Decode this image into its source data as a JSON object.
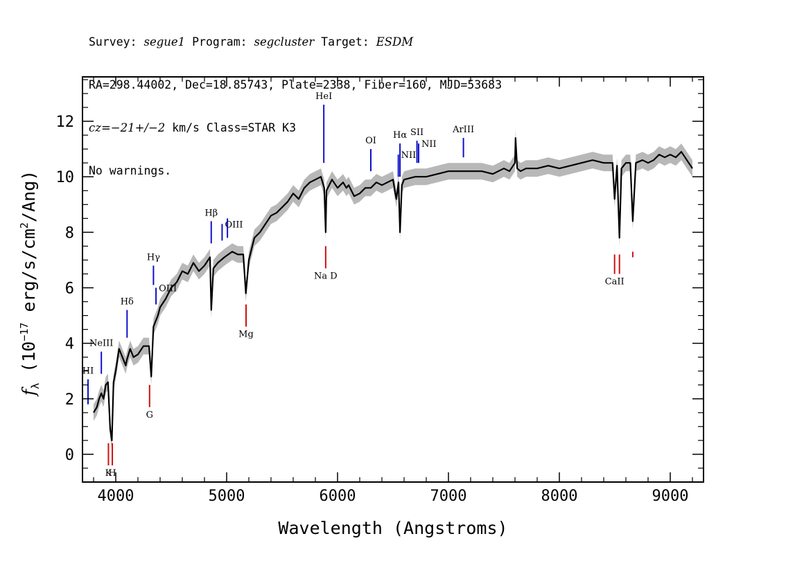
{
  "header": {
    "line1": {
      "survey_label": "Survey: ",
      "survey": "segue1",
      "program_label": " Program: ",
      "program": "segcluster",
      "target_label": " Target: ",
      "target": "ESDM"
    },
    "line2": "RA=298.44002, Dec=18.85743, Plate=2338, Fiber=160, MJD=53683",
    "line3": {
      "cz_label": "cz",
      "cz_value": "=−21+/−2",
      "rest": " km/s Class=STAR K3"
    },
    "line4": "No warnings."
  },
  "chart_data": {
    "type": "line",
    "xlabel": "Wavelength (Angstroms)",
    "ylabel_main": "f",
    "ylabel_sub": "λ",
    "ylabel_pre": " (10",
    "ylabel_exp1": "−17",
    "ylabel_mid": " erg/s/cm",
    "ylabel_exp2": "2",
    "ylabel_post": "/Ang)",
    "xlim": [
      3700,
      9300
    ],
    "ylim": [
      -1,
      13.6
    ],
    "x_ticks": [
      4000,
      5000,
      6000,
      7000,
      8000,
      9000
    ],
    "y_ticks": [
      0,
      2,
      4,
      6,
      8,
      10,
      12
    ],
    "x_tick_labels": [
      "4000",
      "5000",
      "6000",
      "7000",
      "8000",
      "9000"
    ],
    "y_tick_labels": [
      "0",
      "2",
      "4",
      "6",
      "8",
      "10",
      "12"
    ],
    "spectrum": {
      "x": [
        3800,
        3830,
        3850,
        3870,
        3890,
        3910,
        3930,
        3950,
        3965,
        3980,
        4000,
        4030,
        4060,
        4090,
        4100,
        4130,
        4160,
        4200,
        4250,
        4300,
        4320,
        4340,
        4380,
        4400,
        4450,
        4500,
        4550,
        4600,
        4650,
        4700,
        4750,
        4800,
        4850,
        4861,
        4880,
        4920,
        4980,
        5050,
        5100,
        5150,
        5173,
        5200,
        5250,
        5300,
        5350,
        5400,
        5450,
        5500,
        5550,
        5600,
        5650,
        5700,
        5750,
        5800,
        5850,
        5880,
        5893,
        5900,
        5950,
        6000,
        6050,
        6080,
        6100,
        6150,
        6200,
        6250,
        6300,
        6350,
        6400,
        6450,
        6500,
        6530,
        6550,
        6563,
        6580,
        6600,
        6700,
        6800,
        6900,
        7000,
        7100,
        7200,
        7300,
        7400,
        7500,
        7550,
        7600,
        7605,
        7620,
        7650,
        7700,
        7800,
        7900,
        8000,
        8100,
        8200,
        8300,
        8400,
        8480,
        8498,
        8520,
        8542,
        8560,
        8600,
        8640,
        8662,
        8690,
        8750,
        8800,
        8850,
        8900,
        8950,
        9000,
        9050,
        9100,
        9150,
        9200
      ],
      "y": [
        1.5,
        1.7,
        2.0,
        2.2,
        2.0,
        2.5,
        2.6,
        0.9,
        0.5,
        2.6,
        3.0,
        3.8,
        3.5,
        3.2,
        3.4,
        3.8,
        3.5,
        3.6,
        3.9,
        3.9,
        2.8,
        4.6,
        5.0,
        5.3,
        5.6,
        6.0,
        6.2,
        6.6,
        6.5,
        6.9,
        6.6,
        6.8,
        7.1,
        5.2,
        6.7,
        6.9,
        7.1,
        7.3,
        7.2,
        7.2,
        5.8,
        7.0,
        7.8,
        8.0,
        8.3,
        8.6,
        8.7,
        8.9,
        9.1,
        9.4,
        9.2,
        9.6,
        9.8,
        9.9,
        10.0,
        9.6,
        8.0,
        9.5,
        9.9,
        9.6,
        9.8,
        9.6,
        9.7,
        9.3,
        9.4,
        9.6,
        9.6,
        9.8,
        9.7,
        9.8,
        9.9,
        9.2,
        9.8,
        8.0,
        9.7,
        9.9,
        10.0,
        10.0,
        10.1,
        10.2,
        10.2,
        10.2,
        10.2,
        10.1,
        10.3,
        10.2,
        10.5,
        11.4,
        10.3,
        10.2,
        10.3,
        10.3,
        10.4,
        10.3,
        10.4,
        10.5,
        10.6,
        10.5,
        10.5,
        9.2,
        10.4,
        7.8,
        10.3,
        10.5,
        10.5,
        8.4,
        10.5,
        10.6,
        10.5,
        10.6,
        10.8,
        10.7,
        10.8,
        10.7,
        10.9,
        10.6,
        10.3
      ]
    },
    "emission_lines": [
      {
        "label": "HI",
        "x": 3750,
        "y_top": 2.7,
        "y_bottom": 1.8
      },
      {
        "label": "NeIII",
        "x": 3870,
        "y_top": 3.7,
        "y_bottom": 2.9
      },
      {
        "label": "Hδ",
        "x": 4102,
        "y_top": 5.2,
        "y_bottom": 4.2
      },
      {
        "label": "Hγ",
        "x": 4340,
        "y_top": 6.8,
        "y_bottom": 6.1
      },
      {
        "label": "OIII",
        "x": 4363,
        "y_top": 6.0,
        "y_bottom": 5.4
      },
      {
        "label": "Hβ",
        "x": 4861,
        "y_top": 8.4,
        "y_bottom": 7.6
      },
      {
        "label": "OIII",
        "x": 4959,
        "y_top": 8.3,
        "y_bottom": 7.7
      },
      {
        "label": "",
        "x": 5007,
        "y_top": 8.5,
        "y_bottom": 7.8
      },
      {
        "label": "HeI",
        "x": 5876,
        "y_top": 12.6,
        "y_bottom": 10.5
      },
      {
        "label": "OI",
        "x": 6300,
        "y_top": 11.0,
        "y_bottom": 10.2
      },
      {
        "label": "NII",
        "x": 6548,
        "y_top": 10.8,
        "y_bottom": 10.0
      },
      {
        "label": "Hα",
        "x": 6563,
        "y_top": 11.2,
        "y_bottom": 10.0
      },
      {
        "label": "SII",
        "x": 6716,
        "y_top": 11.3,
        "y_bottom": 10.5
      },
      {
        "label": "NII",
        "x": 6731,
        "y_top": 11.2,
        "y_bottom": 10.5
      },
      {
        "label": "ArIII",
        "x": 7135,
        "y_top": 11.4,
        "y_bottom": 10.7
      }
    ],
    "absorption_lines": [
      {
        "label": "K",
        "x": 3934,
        "y_top": 0.4,
        "y_bottom": -0.4
      },
      {
        "label": "H",
        "x": 3969,
        "y_top": 0.4,
        "y_bottom": -0.4
      },
      {
        "label": "G",
        "x": 4305,
        "y_top": 2.5,
        "y_bottom": 1.7
      },
      {
        "label": "Mg",
        "x": 5175,
        "y_top": 5.4,
        "y_bottom": 4.6
      },
      {
        "label": "Na D",
        "x": 5893,
        "y_top": 7.5,
        "y_bottom": 6.7
      },
      {
        "label": "CaII",
        "x": 8498,
        "y_top": 7.2,
        "y_bottom": 6.5
      },
      {
        "label": "",
        "x": 8542,
        "y_top": 7.2,
        "y_bottom": 6.5
      },
      {
        "label": "",
        "x": 8662,
        "y_top": 7.3,
        "y_bottom": 7.1
      }
    ],
    "label_placement": {
      "HI": "above",
      "NeIII": "above",
      "Hδ": "above",
      "Hγ": "above",
      "OIII": "right",
      "Hβ": "above",
      "HeI": "above",
      "OI": "above",
      "NII": "right",
      "Hα": "above",
      "SII": "above",
      "ArIII": "above",
      "K": "below",
      "H": "below",
      "G": "below",
      "Mg": "below",
      "Na D": "below",
      "CaII": "below"
    },
    "colors": {
      "spectrum": "#000000",
      "error_band": "#b8b8b8",
      "emission": "#1010c8",
      "absorption": "#d01010",
      "axes": "#000000"
    }
  }
}
